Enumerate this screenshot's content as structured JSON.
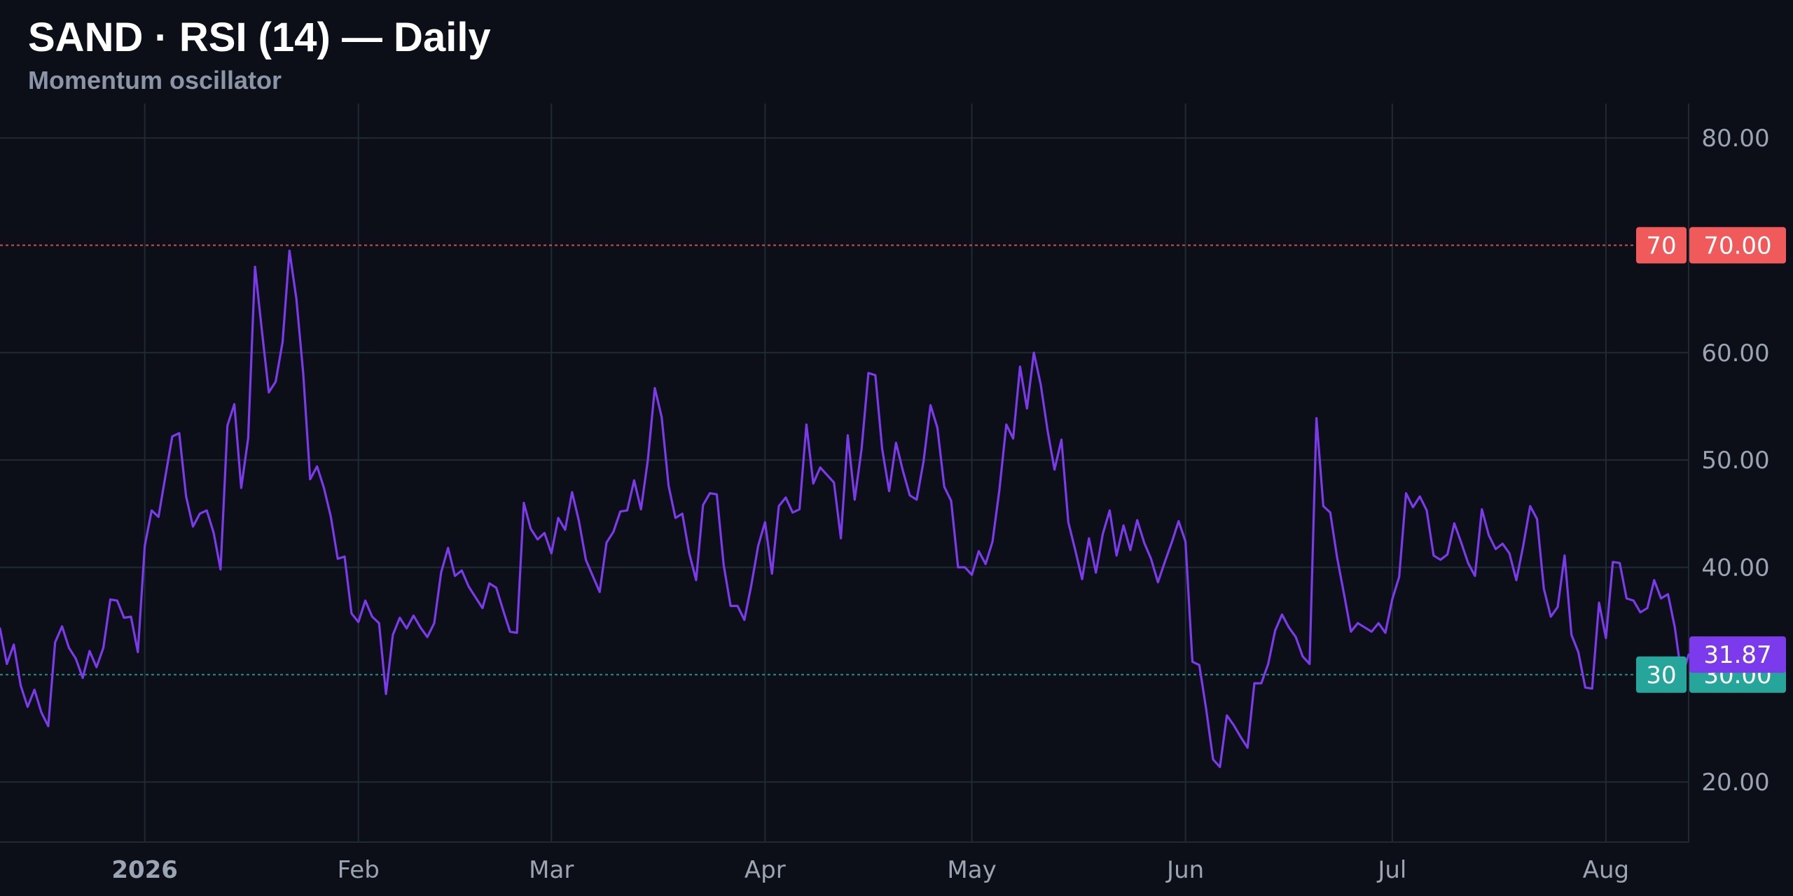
{
  "title": "SAND · RSI (14) — Daily",
  "subtitle": "Momentum oscillator",
  "colors": {
    "background": "#0c0f17",
    "line": "#7c3aed",
    "overbought": "#f05a5a",
    "oversold": "#26a69a",
    "grid": "#1f2b33",
    "axis_text": "#9aa4b2"
  },
  "chart_data": {
    "type": "line",
    "title": "SAND · RSI (14) — Daily",
    "subtitle": "Momentum oscillator",
    "ylim": [
      14.4,
      83.2
    ],
    "y_ticks": [
      "20.00",
      "40.00",
      "50.00",
      "60.00",
      "80.00"
    ],
    "x_ticks": [
      {
        "label": "2026",
        "date": "2026-01-01"
      },
      {
        "label": "Feb",
        "date": "2026-02-01"
      },
      {
        "label": "Mar",
        "date": "2026-03-01"
      },
      {
        "label": "Apr",
        "date": "2026-04-01"
      },
      {
        "label": "May",
        "date": "2026-05-01"
      },
      {
        "label": "Jun",
        "date": "2026-06-01"
      },
      {
        "label": "Jul",
        "date": "2026-07-01"
      },
      {
        "label": "Aug",
        "date": "2026-08-01"
      }
    ],
    "x_range": [
      "2025-12-11",
      "2026-08-13"
    ],
    "levels": [
      {
        "value": 70,
        "label": "70",
        "axis_label": "70.00",
        "color": "#f05a5a"
      },
      {
        "value": 30,
        "label": "30",
        "axis_label": "30.00",
        "color": "#26a69a"
      }
    ],
    "last_value": {
      "value": 31.87,
      "label": "31.87"
    },
    "grid": true,
    "series": [
      {
        "color": "#7c3aed",
        "start_date": "2025-12-11",
        "interval": "1 day",
        "values": [
          34.3,
          31.0,
          32.8,
          29.0,
          27.0,
          28.6,
          26.5,
          25.2,
          33.0,
          34.5,
          32.5,
          31.5,
          29.7,
          32.2,
          30.7,
          32.5,
          37.0,
          36.9,
          35.3,
          35.4,
          32.1,
          42.0,
          45.3,
          44.7,
          48.5,
          52.2,
          52.5,
          46.6,
          43.8,
          45.0,
          45.3,
          43.2,
          39.8,
          53.2,
          55.2,
          47.4,
          52.0,
          68.0,
          62.0,
          56.3,
          57.3,
          61.0,
          69.5,
          65.0,
          58.0,
          48.2,
          49.4,
          47.4,
          44.7,
          40.8,
          41.0,
          35.7,
          34.9,
          36.9,
          35.4,
          34.8,
          28.2,
          33.7,
          35.3,
          34.3,
          35.5,
          34.4,
          33.5,
          34.8,
          39.5,
          41.8,
          39.2,
          39.7,
          38.2,
          37.2,
          36.2,
          38.5,
          38.1,
          36.0,
          34.0,
          33.9,
          46.0,
          43.6,
          42.6,
          43.2,
          41.3,
          44.6,
          43.5,
          47.0,
          44.3,
          40.7,
          39.2,
          37.7,
          42.3,
          43.3,
          45.2,
          45.3,
          48.1,
          45.4,
          50.0,
          56.7,
          54.0,
          47.6,
          44.6,
          45.0,
          41.3,
          38.8,
          45.8,
          46.9,
          46.8,
          40.2,
          36.4,
          36.4,
          35.1,
          38.3,
          42.0,
          44.2,
          39.4,
          45.7,
          46.5,
          45.1,
          45.4,
          53.3,
          47.8,
          49.3,
          48.6,
          47.9,
          42.7,
          52.3,
          46.3,
          51.0,
          58.1,
          57.9,
          51.0,
          47.1,
          51.6,
          49.0,
          46.7,
          46.3,
          49.9,
          55.1,
          53.0,
          47.5,
          46.2,
          40.0,
          40.0,
          39.3,
          41.5,
          40.3,
          42.4,
          47.2,
          53.3,
          52.0,
          58.7,
          54.8,
          60.0,
          57.0,
          52.7,
          49.1,
          51.9,
          44.2,
          41.6,
          38.9,
          42.7,
          39.5,
          43.1,
          45.3,
          41.1,
          43.9,
          41.6,
          44.4,
          42.3,
          40.8,
          38.6,
          40.5,
          42.3,
          44.3,
          42.4,
          31.2,
          30.9,
          26.8,
          22.1,
          21.4,
          26.2,
          25.3,
          24.2,
          23.2,
          29.2,
          29.2,
          31.0,
          34.1,
          35.6,
          34.4,
          33.5,
          31.7,
          31.0,
          53.9,
          45.7,
          45.1,
          40.9,
          37.5,
          34.0,
          34.8,
          34.4,
          34.0,
          34.8,
          33.9,
          37.0,
          39.1,
          46.9,
          45.6,
          46.6,
          45.3,
          41.1,
          40.7,
          41.2,
          44.1,
          42.3,
          40.4,
          39.2,
          45.4,
          43.0,
          41.7,
          42.2,
          41.3,
          38.8,
          42.0,
          45.7,
          44.5,
          38.0,
          35.4,
          36.3,
          41.1,
          33.7,
          32.1,
          28.8,
          28.7,
          36.7,
          33.4,
          40.5,
          40.4,
          37.1,
          36.9,
          35.8,
          36.2,
          38.8,
          37.1,
          37.5,
          34.4,
          29.7,
          31.87
        ]
      }
    ]
  }
}
